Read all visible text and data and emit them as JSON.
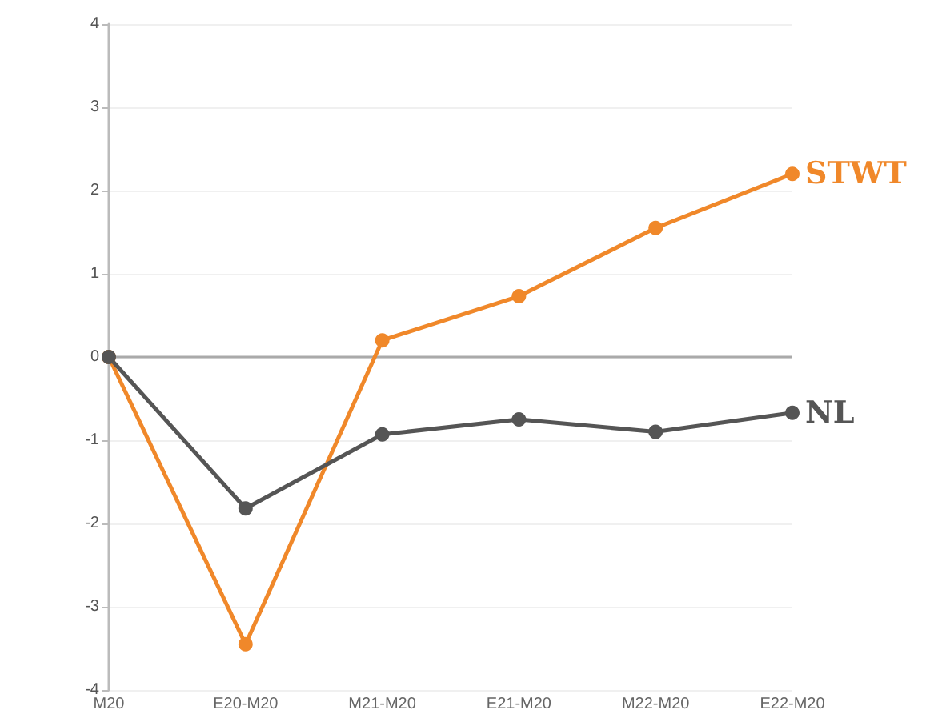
{
  "chart_data": {
    "type": "line",
    "categories": [
      "M20",
      "E20-M20",
      "M21-M20",
      "E21-M20",
      "M22-M20",
      "E22-M20"
    ],
    "series": [
      {
        "name": "STWT",
        "color": "#f0882a",
        "values": [
          0,
          -3.45,
          0.2,
          0.73,
          1.55,
          2.2
        ]
      },
      {
        "name": "NL",
        "color": "#555555",
        "values": [
          0,
          -1.82,
          -0.93,
          -0.75,
          -0.9,
          -0.67
        ]
      }
    ],
    "ylim": [
      -4,
      4
    ],
    "yticks": [
      -4,
      -3,
      -2,
      -1,
      0,
      1,
      2,
      3,
      4
    ],
    "grid": "y",
    "legend": false,
    "marker": "circle",
    "line_style": "solid",
    "ref_lines": [
      {
        "axis": "y",
        "value": 0,
        "color": "#aaaaaa"
      }
    ]
  }
}
